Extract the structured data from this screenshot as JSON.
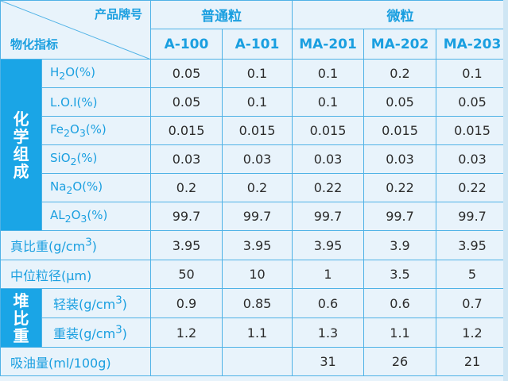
{
  "header": {
    "product_label": "产品牌号",
    "property_label": "物化指标",
    "group_normal": "普通粒",
    "group_micro": "微粒",
    "models": [
      "A-100",
      "A-101",
      "MA-201",
      "MA-202",
      "MA-203"
    ]
  },
  "groups": {
    "chem": [
      "化",
      "学",
      "组",
      "成"
    ],
    "bulk": [
      "堆",
      "比",
      "重"
    ]
  },
  "rows": {
    "h2o": {
      "label": "H",
      "sub": "2",
      "label2": "O(%)",
      "values": [
        "0.05",
        "0.1",
        "0.1",
        "0.2",
        "0.1"
      ]
    },
    "loi": {
      "label": "L.O.I(%)",
      "values": [
        "0.05",
        "0.1",
        "0.1",
        "0.05",
        "0.05"
      ]
    },
    "fe2o3": {
      "label": "Fe",
      "sub": "2",
      "label2": "O",
      "sub2": "3",
      "label3": "(%)",
      "values": [
        "0.015",
        "0.015",
        "0.015",
        "0.015",
        "0.015"
      ]
    },
    "sio2": {
      "label": "SiO",
      "sub": "2",
      "label2": "(%)",
      "values": [
        "0.03",
        "0.03",
        "0.03",
        "0.03",
        "0.03"
      ]
    },
    "na2o": {
      "label": "Na",
      "sub": "2",
      "label2": "O(%)",
      "values": [
        "0.2",
        "0.2",
        "0.22",
        "0.22",
        "0.22"
      ]
    },
    "al2o3": {
      "label": "AL",
      "sub": "2",
      "label2": "O",
      "sub2": "3",
      "label3": "(%)",
      "values": [
        "99.7",
        "99.7",
        "99.7",
        "99.7",
        "99.7"
      ]
    },
    "density": {
      "label": "真比重(g/cm",
      "sup": "3",
      "label2": ")",
      "values": [
        "3.95",
        "3.95",
        "3.95",
        "3.9",
        "3.95"
      ]
    },
    "median": {
      "label": "中位粒径(μm)",
      "values": [
        "50",
        "10",
        "1",
        "3.5",
        "5"
      ]
    },
    "light": {
      "label": "轻装(g/cm",
      "sup": "3",
      "label2": ")",
      "values": [
        "0.9",
        "0.85",
        "0.6",
        "0.6",
        "0.7"
      ]
    },
    "heavy": {
      "label": "重装(g/cm",
      "sup": "3",
      "label2": ")",
      "values": [
        "1.2",
        "1.1",
        "1.3",
        "1.1",
        "1.2"
      ]
    },
    "oil": {
      "label": "吸油量(ml/100g)",
      "values": [
        "",
        "",
        "31",
        "26",
        "21"
      ]
    }
  },
  "colors": {
    "accent": "#1aa5e6",
    "text_blue": "#1a9fe0",
    "border": "#4fb2e6",
    "bg": "#e8f3fb"
  }
}
